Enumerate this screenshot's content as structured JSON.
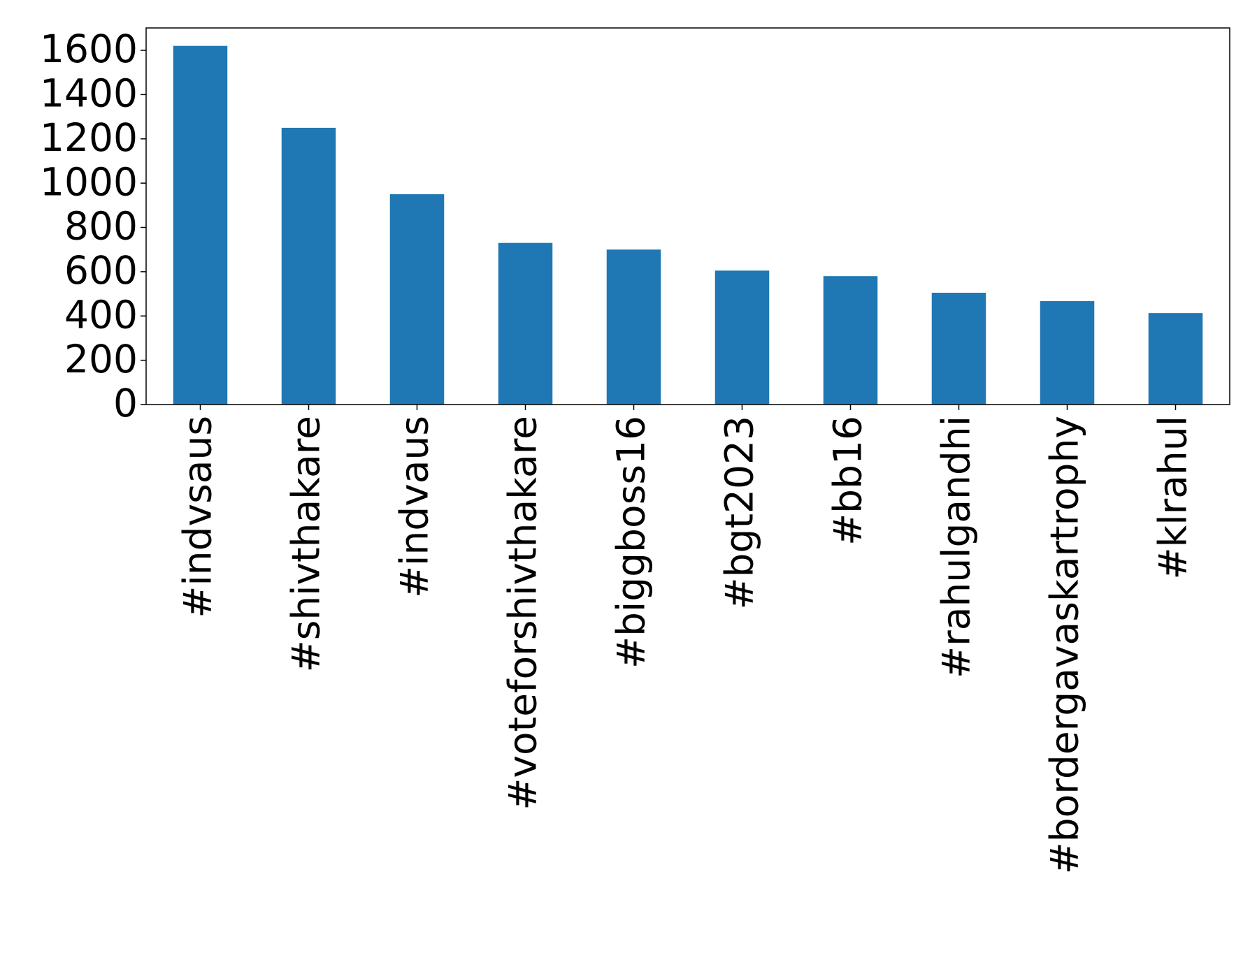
{
  "chart_data": {
    "type": "bar",
    "categories": [
      "#indvsaus",
      "#shivthakare",
      "#indvaus",
      "#voteforshivthakare",
      "#biggboss16",
      "#bgt2023",
      "#bb16",
      "#rahulgandhi",
      "#bordergavaskartrophy",
      "#klrahul"
    ],
    "values": [
      1620,
      1250,
      950,
      730,
      700,
      605,
      580,
      505,
      467,
      413
    ],
    "color": "#1f77b4",
    "ylim": [
      0,
      1701
    ],
    "yticks": [
      0,
      200,
      400,
      600,
      800,
      1000,
      1200,
      1400,
      1600
    ],
    "grid": false
  }
}
